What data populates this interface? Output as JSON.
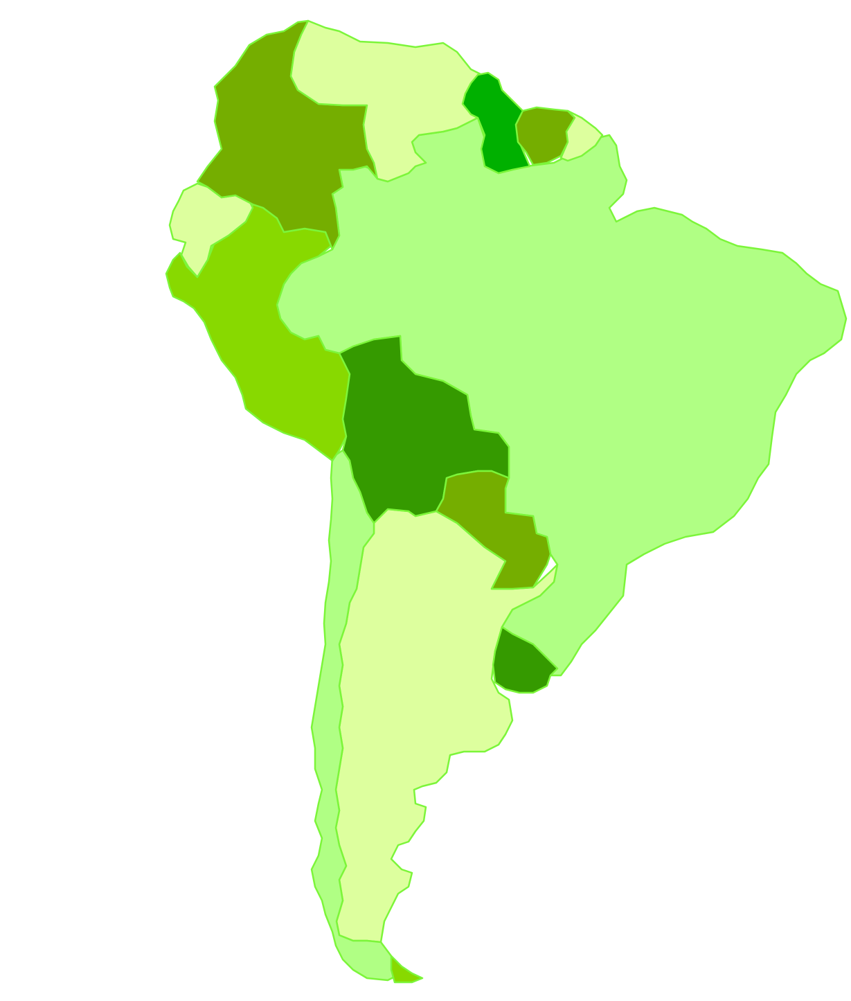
{
  "map": {
    "colors": {
      "border": "#7cf53a",
      "scale": [
        "#ddff9e",
        "#b0ff84",
        "#88d900",
        "#75ae00",
        "#359a00",
        "#00b000"
      ]
    },
    "regions": [
      {
        "id": "brazil",
        "color": "#b0ff84"
      },
      {
        "id": "argentina",
        "color": "#ddff9e"
      },
      {
        "id": "chile",
        "color": "#b0ff84"
      },
      {
        "id": "peru",
        "color": "#88d900"
      },
      {
        "id": "colombia",
        "color": "#75ae00"
      },
      {
        "id": "venezuela",
        "color": "#ddff9e"
      },
      {
        "id": "ecuador",
        "color": "#ddff9e"
      },
      {
        "id": "bolivia",
        "color": "#359a00"
      },
      {
        "id": "paraguay",
        "color": "#75ae00"
      },
      {
        "id": "uruguay",
        "color": "#359a00"
      },
      {
        "id": "guyana",
        "color": "#00b000"
      },
      {
        "id": "suriname",
        "color": "#75ae00"
      },
      {
        "id": "french-guiana",
        "color": "#ddff9e"
      },
      {
        "id": "tierra-del-fuego-argentina",
        "color": "#88d900"
      }
    ]
  }
}
